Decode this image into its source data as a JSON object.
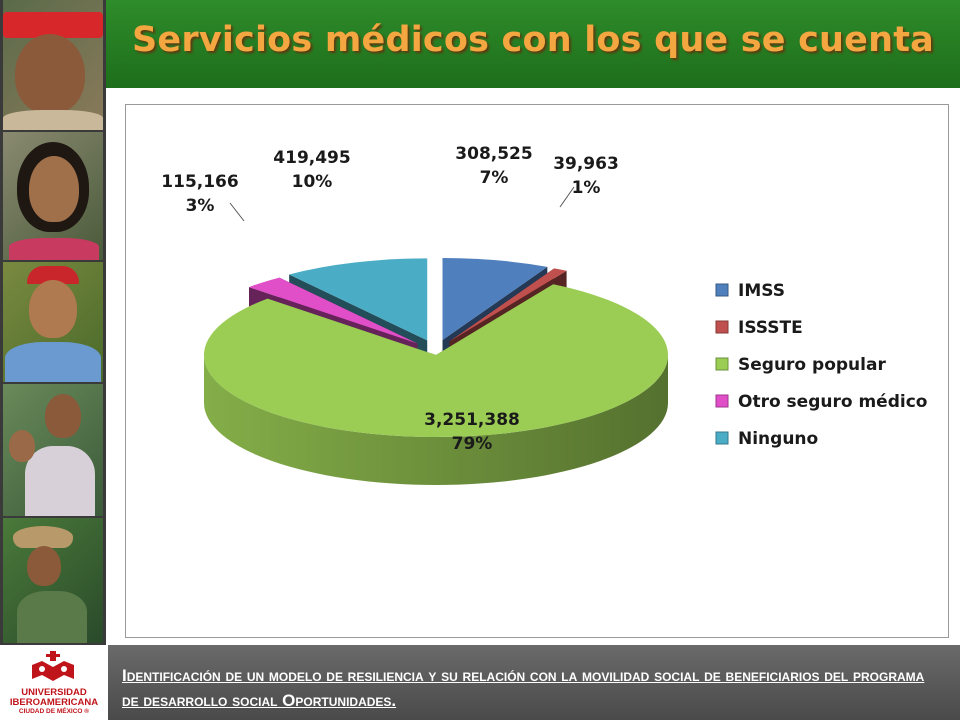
{
  "title": "Servicios médicos con los que se cuenta",
  "chart_data": {
    "type": "pie",
    "title": "",
    "slices": [
      {
        "name": "IMSS",
        "value": 308525,
        "value_label": "308,525",
        "percent_label": "7%",
        "color": "#4f7fbd"
      },
      {
        "name": "ISSSTE",
        "value": 39963,
        "value_label": "39,963",
        "percent_label": "1%",
        "color": "#c0504d"
      },
      {
        "name": "Seguro popular",
        "value": 3251388,
        "value_label": "3,251,388",
        "percent_label": "79%",
        "color": "#9bcd55"
      },
      {
        "name": "Otro seguro médico",
        "value": 115166,
        "value_label": "115,166",
        "percent_label": "3%",
        "color": "#e04ec8"
      },
      {
        "name": "Ninguno",
        "value": 419495,
        "value_label": "419,495",
        "percent_label": "10%",
        "color": "#4bacc6"
      }
    ],
    "style": "3d-exploded",
    "legend": "right"
  },
  "footer": {
    "text": "Identificación de un modelo de resiliencia y su relación con la movilidad social de beneficiarios del programa de desarrollo social Oportunidades."
  },
  "logo": {
    "line1": "UNIVERSIDAD",
    "line2": "IBEROAMERICANA",
    "line3": "CIUDAD DE MÉXICO ®"
  }
}
